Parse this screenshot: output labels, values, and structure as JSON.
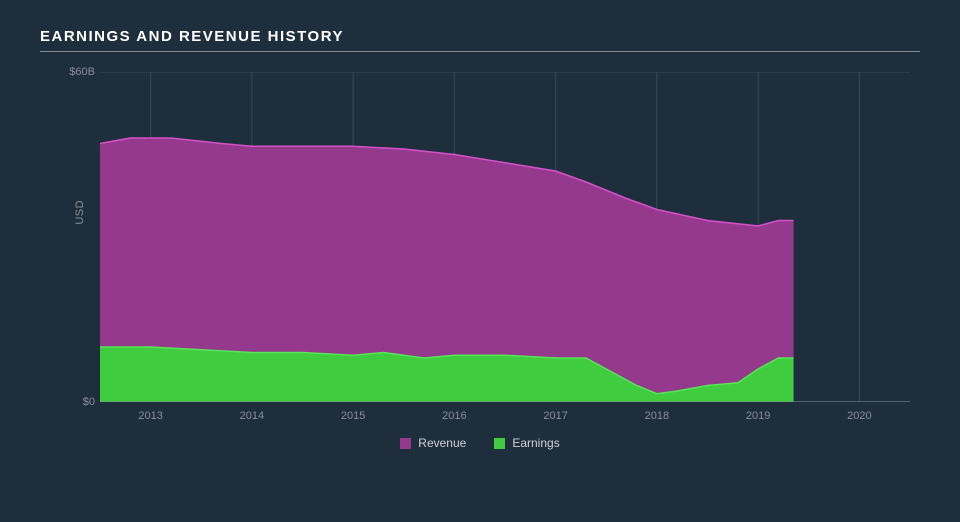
{
  "title": "EARNINGS AND REVENUE HISTORY",
  "chart": {
    "type": "area",
    "background_color": "#1f2e3d",
    "grid_color": "#3a4a5a",
    "axis_line_color": "#8a8f95",
    "text_color": "#8a8f95",
    "title_color": "#ffffff",
    "title_fontsize": 15,
    "label_fontsize": 11,
    "y_unit_label": "USD",
    "ylim": [
      0,
      60
    ],
    "yticks": [
      {
        "value": 0,
        "label": "$0"
      },
      {
        "value": 60,
        "label": "$60B"
      }
    ],
    "xlim": [
      2012.5,
      2020.5
    ],
    "xticks": [
      {
        "value": 2013,
        "label": "2013"
      },
      {
        "value": 2014,
        "label": "2014"
      },
      {
        "value": 2015,
        "label": "2015"
      },
      {
        "value": 2016,
        "label": "2016"
      },
      {
        "value": 2017,
        "label": "2017"
      },
      {
        "value": 2018,
        "label": "2018"
      },
      {
        "value": 2019,
        "label": "2019"
      },
      {
        "value": 2020,
        "label": "2020"
      }
    ],
    "series": [
      {
        "name": "Revenue",
        "color": "#94398c",
        "stroke": "#d651c9",
        "stroke_width": 1.5,
        "points": [
          {
            "x": 2012.5,
            "y": 47
          },
          {
            "x": 2012.8,
            "y": 48
          },
          {
            "x": 2013.2,
            "y": 48
          },
          {
            "x": 2013.7,
            "y": 47
          },
          {
            "x": 2014.0,
            "y": 46.5
          },
          {
            "x": 2014.5,
            "y": 46.5
          },
          {
            "x": 2015.0,
            "y": 46.5
          },
          {
            "x": 2015.5,
            "y": 46
          },
          {
            "x": 2016.0,
            "y": 45
          },
          {
            "x": 2016.5,
            "y": 43.5
          },
          {
            "x": 2017.0,
            "y": 42
          },
          {
            "x": 2017.3,
            "y": 40
          },
          {
            "x": 2017.7,
            "y": 37
          },
          {
            "x": 2018.0,
            "y": 35
          },
          {
            "x": 2018.5,
            "y": 33
          },
          {
            "x": 2019.0,
            "y": 32
          },
          {
            "x": 2019.2,
            "y": 33
          },
          {
            "x": 2019.35,
            "y": 33
          }
        ]
      },
      {
        "name": "Earnings",
        "color": "#3fcc3f",
        "stroke": "#56e656",
        "stroke_width": 1.5,
        "points": [
          {
            "x": 2012.5,
            "y": 10
          },
          {
            "x": 2013.0,
            "y": 10
          },
          {
            "x": 2013.5,
            "y": 9.5
          },
          {
            "x": 2014.0,
            "y": 9
          },
          {
            "x": 2014.5,
            "y": 9
          },
          {
            "x": 2015.0,
            "y": 8.5
          },
          {
            "x": 2015.3,
            "y": 9
          },
          {
            "x": 2015.7,
            "y": 8
          },
          {
            "x": 2016.0,
            "y": 8.5
          },
          {
            "x": 2016.5,
            "y": 8.5
          },
          {
            "x": 2017.0,
            "y": 8
          },
          {
            "x": 2017.3,
            "y": 8
          },
          {
            "x": 2017.5,
            "y": 6
          },
          {
            "x": 2017.8,
            "y": 3
          },
          {
            "x": 2018.0,
            "y": 1.5
          },
          {
            "x": 2018.2,
            "y": 2
          },
          {
            "x": 2018.5,
            "y": 3
          },
          {
            "x": 2018.8,
            "y": 3.5
          },
          {
            "x": 2019.0,
            "y": 6
          },
          {
            "x": 2019.2,
            "y": 8
          },
          {
            "x": 2019.35,
            "y": 8
          }
        ]
      }
    ],
    "legend": {
      "items": [
        {
          "label": "Revenue",
          "color": "#94398c"
        },
        {
          "label": "Earnings",
          "color": "#3fcc3f"
        }
      ],
      "fontsize": 12,
      "text_color": "#cfd3d7"
    }
  }
}
